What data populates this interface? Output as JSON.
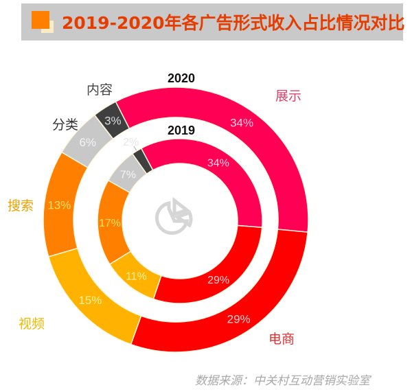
{
  "header": {
    "title": "2019-2020年各广告形式收入占比情况对比"
  },
  "source": "数据来源：中关村互动营销实验室",
  "center_icon": "pie-chart-icon",
  "chart_data": {
    "type": "pie",
    "variant": "nested-donut",
    "title": "2019-2020年各广告形式收入占比情况对比",
    "categories": [
      "展示",
      "电商",
      "视频",
      "搜索",
      "分类",
      "内容"
    ],
    "colors": {
      "展示": "#ff0055",
      "电商": "#ff0000",
      "视频": "#ffb300",
      "搜索": "#ff8000",
      "分类": "#c8c8c8",
      "内容": "#3f3f3f"
    },
    "label_colors": {
      "展示": "#d9436b",
      "电商": "#e03030",
      "视频": "#f0b800",
      "搜索": "#f0a000",
      "分类": "#333333",
      "内容": "#444444"
    },
    "series": [
      {
        "name": "2020",
        "ring": "outer",
        "values": [
          34,
          29,
          15,
          13,
          6,
          3
        ],
        "labels": [
          "34%",
          "29%",
          "15%",
          "13%",
          "6%",
          "3%"
        ]
      },
      {
        "name": "2019",
        "ring": "inner",
        "values": [
          34,
          29,
          11,
          17,
          7,
          2
        ],
        "labels": [
          "34%",
          "29%",
          "11%",
          "17%",
          "7%",
          "2%"
        ]
      }
    ],
    "unit": "%"
  }
}
